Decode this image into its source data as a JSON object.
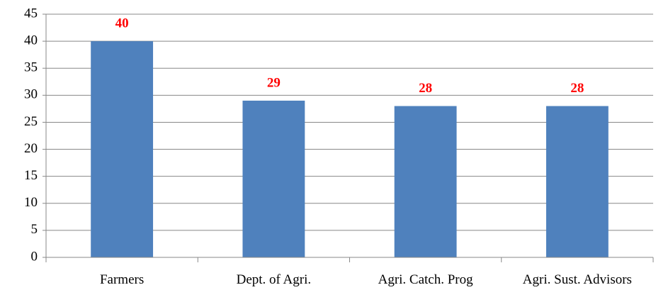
{
  "chart_data": {
    "type": "bar",
    "categories": [
      "Farmers",
      "Dept. of Agri.",
      "Agri. Catch. Prog",
      "Agri. Sust. Advisors"
    ],
    "values": [
      40,
      29,
      28,
      28
    ],
    "color": "#4f81bd",
    "label_color": "#ff0000",
    "ylim": [
      0,
      45
    ],
    "yticks": [
      0,
      5,
      10,
      15,
      20,
      25,
      30,
      35,
      40,
      45
    ],
    "grid": true
  }
}
